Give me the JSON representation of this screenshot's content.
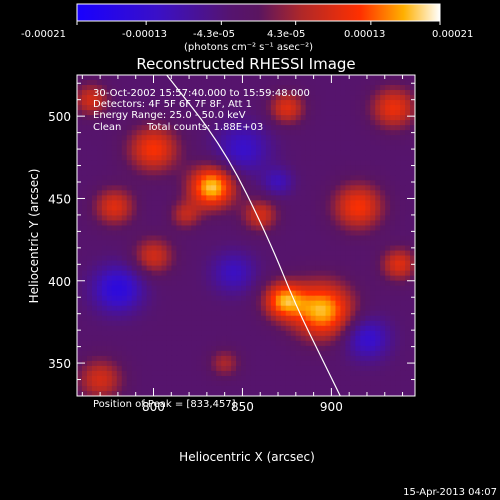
{
  "chart_data": {
    "type": "heatmap",
    "title": "Reconstructed RHESSI Image",
    "xlabel": "Heliocentric X (arcsec)",
    "ylabel": "Heliocentric Y (arcsec)",
    "xlim": [
      757,
      947
    ],
    "ylim": [
      330,
      525
    ],
    "x_ticks": [
      800,
      850,
      900
    ],
    "y_ticks": [
      350,
      400,
      450,
      500
    ],
    "colorbar": {
      "range": [
        -0.00021,
        0.00021
      ],
      "tick_labels": [
        "-0.00021",
        "-0.00013",
        "-4.3e-05",
        "4.3e-05",
        "0.00013",
        "0.00021"
      ],
      "unit_label": "(photons cm⁻² s⁻¹ asec⁻²)"
    },
    "annotations": {
      "time_range": "30-Oct-2002 15:57:40.000 to 15:59:48.000",
      "detectors": "Detectors: 4F 5F 6F 7F 8F, Att 1",
      "energy_range": "Energy Range: 25.0 - 50.0 keV",
      "method": "Clean",
      "total_counts": "Total counts: 1.88E+03",
      "peak": "Position of Peak = [833,457]"
    },
    "limb_curve": [
      [
        806,
        527
      ],
      [
        840,
        480
      ],
      [
        865,
        425
      ],
      [
        880,
        385
      ],
      [
        895,
        352
      ],
      [
        905,
        330
      ]
    ],
    "sources": [
      {
        "x": 833,
        "y": 457,
        "sigma": 9,
        "amp": 1.0
      },
      {
        "x": 895,
        "y": 382,
        "sigma": 12,
        "amp": 0.95
      },
      {
        "x": 873,
        "y": 388,
        "sigma": 8,
        "amp": 0.8
      },
      {
        "x": 800,
        "y": 480,
        "sigma": 10,
        "amp": 0.65
      },
      {
        "x": 778,
        "y": 445,
        "sigma": 8,
        "amp": 0.55
      },
      {
        "x": 800,
        "y": 415,
        "sigma": 8,
        "amp": 0.5
      },
      {
        "x": 860,
        "y": 440,
        "sigma": 7,
        "amp": 0.5
      },
      {
        "x": 875,
        "y": 505,
        "sigma": 7,
        "amp": 0.55
      },
      {
        "x": 915,
        "y": 445,
        "sigma": 10,
        "amp": 0.65
      },
      {
        "x": 938,
        "y": 410,
        "sigma": 7,
        "amp": 0.55
      },
      {
        "x": 935,
        "y": 505,
        "sigma": 9,
        "amp": 0.6
      },
      {
        "x": 770,
        "y": 340,
        "sigma": 9,
        "amp": 0.5
      },
      {
        "x": 765,
        "y": 510,
        "sigma": 7,
        "amp": 0.5
      },
      {
        "x": 840,
        "y": 350,
        "sigma": 6,
        "amp": 0.35
      },
      {
        "x": 818,
        "y": 440,
        "sigma": 6,
        "amp": 0.4
      },
      {
        "x": 780,
        "y": 395,
        "sigma": 10,
        "amp": -0.6
      },
      {
        "x": 850,
        "y": 480,
        "sigma": 11,
        "amp": -0.45
      },
      {
        "x": 920,
        "y": 365,
        "sigma": 9,
        "amp": -0.5
      },
      {
        "x": 845,
        "y": 405,
        "sigma": 9,
        "amp": -0.4
      },
      {
        "x": 870,
        "y": 460,
        "sigma": 6,
        "amp": -0.35
      }
    ],
    "background_level": -0.12
  },
  "footer": {
    "timestamp": "15-Apr-2013 04:07"
  }
}
